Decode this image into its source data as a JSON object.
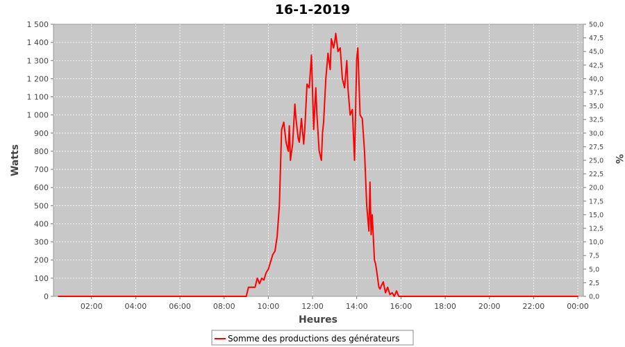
{
  "chart_data": {
    "type": "line",
    "title": "16-1-2019",
    "xlabel": "Heures",
    "ylabel": "Watts",
    "y2label": "%",
    "x_ticks": [
      "02:00",
      "04:00",
      "06:00",
      "08:00",
      "10:00",
      "12:00",
      "14:00",
      "16:00",
      "18:00",
      "20:00",
      "22:00",
      "00:00"
    ],
    "y_ticks": [
      "0",
      "100",
      "200",
      "300",
      "400",
      "500",
      "600",
      "700",
      "800",
      "900",
      "1 000",
      "1 100",
      "1 200",
      "1 300",
      "1 400",
      "1 500"
    ],
    "y2_ticks": [
      "0,0",
      "2,5",
      "5,0",
      "7,5",
      "10,0",
      "12,5",
      "15,0",
      "17,5",
      "20,0",
      "22,5",
      "25,0",
      "27,5",
      "30,0",
      "32,5",
      "35,0",
      "37,5",
      "40,0",
      "42,5",
      "45,0",
      "47,5",
      "50,0"
    ],
    "xlim": [
      0.28,
      24.25
    ],
    "ylim": [
      0,
      1500
    ],
    "y2lim": [
      0,
      50
    ],
    "grid": true,
    "background": "#c8c8c8",
    "line_color": "#ff0000",
    "legend": {
      "position": "bottom-center",
      "entries": [
        "Somme des productions des  générateurs"
      ]
    },
    "series": [
      {
        "name": "Somme des productions des  générateurs",
        "x": [
          0.5,
          8.5,
          9.0,
          9.1,
          9.4,
          9.5,
          9.6,
          9.7,
          9.8,
          9.9,
          10.0,
          10.1,
          10.2,
          10.3,
          10.4,
          10.5,
          10.6,
          10.7,
          10.8,
          10.9,
          10.95,
          11.0,
          11.1,
          11.2,
          11.25,
          11.35,
          11.4,
          11.5,
          11.6,
          11.65,
          11.75,
          11.85,
          11.95,
          12.05,
          12.15,
          12.2,
          12.3,
          12.4,
          12.45,
          12.5,
          12.6,
          12.7,
          12.8,
          12.85,
          12.95,
          13.0,
          13.05,
          13.15,
          13.25,
          13.35,
          13.45,
          13.55,
          13.6,
          13.7,
          13.8,
          13.9,
          14.0,
          14.05,
          14.15,
          14.25,
          14.35,
          14.45,
          14.55,
          14.6,
          14.65,
          14.7,
          14.8,
          14.85,
          14.9,
          15.0,
          15.05,
          15.1,
          15.2,
          15.3,
          15.4,
          15.5,
          15.6,
          15.7,
          15.8,
          15.9,
          16.0,
          16.1,
          16.2,
          16.3,
          16.4,
          16.5,
          16.6,
          16.7,
          24.0
        ],
        "y": [
          0,
          0,
          0,
          50,
          50,
          100,
          70,
          100,
          90,
          130,
          150,
          190,
          230,
          250,
          330,
          500,
          920,
          960,
          850,
          800,
          940,
          750,
          840,
          1060,
          980,
          870,
          850,
          980,
          840,
          920,
          1170,
          1150,
          1330,
          920,
          1150,
          1000,
          800,
          750,
          900,
          960,
          1200,
          1340,
          1250,
          1420,
          1370,
          1400,
          1450,
          1350,
          1370,
          1200,
          1150,
          1300,
          1150,
          1000,
          1030,
          750,
          1310,
          1370,
          1000,
          980,
          800,
          500,
          360,
          630,
          340,
          450,
          200,
          180,
          140,
          50,
          40,
          55,
          80,
          20,
          50,
          10,
          20,
          0,
          30,
          0,
          0,
          0,
          0,
          0,
          0,
          0,
          0,
          0,
          0
        ]
      }
    ]
  }
}
